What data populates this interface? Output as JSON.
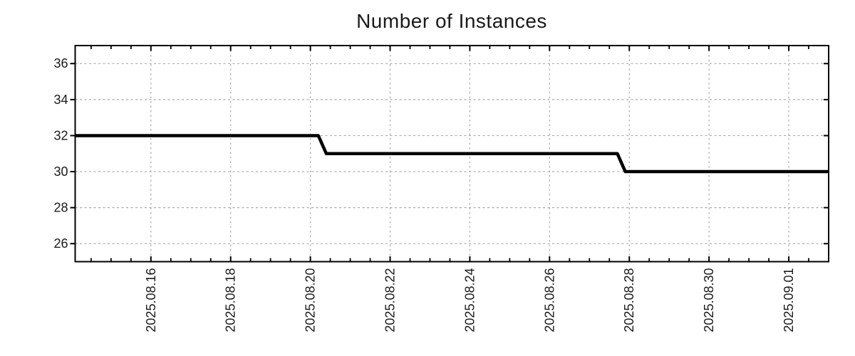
{
  "chart_data": {
    "type": "line",
    "line_style": "step",
    "title": "Number of Instances",
    "legend": "none",
    "grid": true,
    "x_axis": {
      "reference_date": "2025-08-16",
      "major_tick_labels": [
        "2025.08.16",
        "2025.08.18",
        "2025.08.20",
        "2025.08.22",
        "2025.08.24",
        "2025.08.26",
        "2025.08.28",
        "2025.08.30",
        "2025.09.01"
      ],
      "major_tick_offsets_days": [
        0,
        2,
        4,
        6,
        8,
        10,
        12,
        14,
        16
      ],
      "minor_tick_step_days": 0.5,
      "range_days": [
        -1.9,
        17
      ]
    },
    "y_axis": {
      "tick_labels": [
        "26",
        "28",
        "30",
        "32",
        "34",
        "36"
      ],
      "tick_values": [
        26,
        28,
        30,
        32,
        34,
        36
      ],
      "range": [
        25,
        37
      ]
    },
    "series": [
      {
        "name": "instances",
        "color": "#000000",
        "points_day_value": [
          [
            -1.9,
            32
          ],
          [
            4.2,
            32
          ],
          [
            4.4,
            31
          ],
          [
            11.7,
            31
          ],
          [
            11.9,
            30
          ],
          [
            17.0,
            30
          ]
        ]
      }
    ],
    "colors": {
      "line": "#000000",
      "grid": "#a9a9a9",
      "axis": "#000000",
      "text": "#1a1a1a"
    }
  }
}
